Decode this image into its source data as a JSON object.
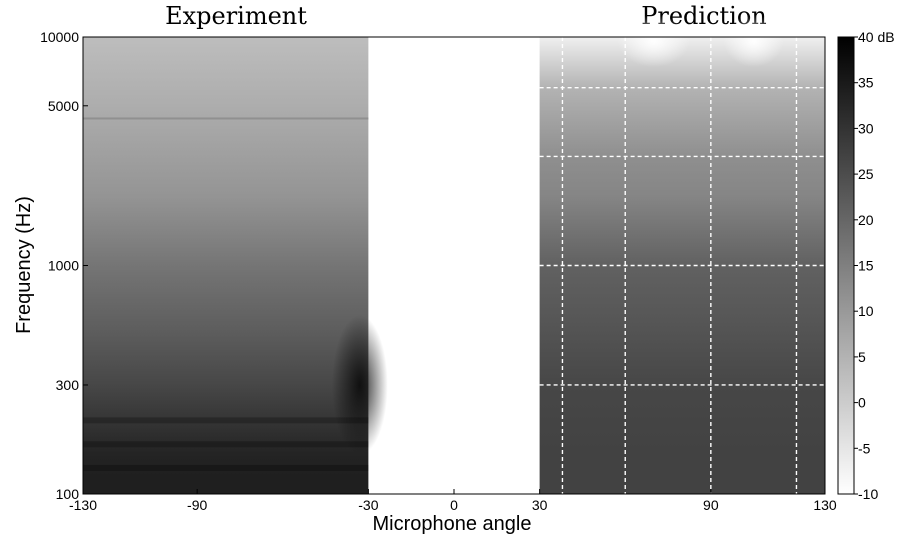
{
  "chart_data": {
    "type": "heatmap",
    "xlabel": "Microphone angle",
    "ylabel": "Frequency (Hz)",
    "x_axis": {
      "range": [
        -130,
        130
      ],
      "ticks": [
        -130,
        -90,
        -30,
        0,
        30,
        90,
        130
      ],
      "tick_labels": [
        "-130",
        "-90",
        "-30",
        "0",
        "30",
        "90",
        "130"
      ]
    },
    "y_axis": {
      "scale": "log",
      "range": [
        100,
        10000
      ],
      "ticks": [
        100,
        300,
        1000,
        5000,
        10000
      ],
      "tick_labels": [
        "100",
        "300",
        "1000",
        "5000",
        "10000"
      ]
    },
    "colorbar": {
      "range": [
        -10,
        40
      ],
      "ticks": [
        -10,
        -5,
        0,
        5,
        10,
        15,
        20,
        25,
        30,
        35,
        40
      ],
      "tick_labels": [
        "-10",
        "-5",
        "0",
        "5",
        "10",
        "15",
        "20",
        "25",
        "30",
        "35",
        "40 dB"
      ],
      "colormap": "white-to-black",
      "unit": "dB"
    },
    "panels": [
      {
        "title": "Experiment",
        "x_range": [
          -130,
          -30
        ],
        "y_range": [
          100,
          10000
        ],
        "level_db_by_frequency": [
          {
            "freq": 120,
            "db": 34
          },
          {
            "freq": 150,
            "db": 33
          },
          {
            "freq": 200,
            "db": 30
          },
          {
            "freq": 300,
            "db": 26
          },
          {
            "freq": 500,
            "db": 22
          },
          {
            "freq": 1000,
            "db": 17
          },
          {
            "freq": 2000,
            "db": 11
          },
          {
            "freq": 5000,
            "db": 6
          },
          {
            "freq": 10000,
            "db": 3
          }
        ],
        "features": [
          {
            "freq": 4400,
            "db": 13
          },
          {
            "freq": 300,
            "x": -33,
            "db": 38
          }
        ]
      },
      {
        "title": "Prediction",
        "x_range": [
          30,
          130
        ],
        "y_range": [
          100,
          10000
        ],
        "level_db_by_frequency": [
          {
            "freq": 150,
            "db": 27
          },
          {
            "freq": 300,
            "db": 26
          },
          {
            "freq": 600,
            "db": 23
          },
          {
            "freq": 1000,
            "db": 21
          },
          {
            "freq": 2000,
            "db": 14
          },
          {
            "freq": 3000,
            "db": 12
          },
          {
            "freq": 6000,
            "db": 5
          },
          {
            "freq": 10000,
            "db": -7
          }
        ],
        "grid": {
          "style": "dashed white",
          "x": [
            38,
            60,
            90,
            120
          ],
          "y": [
            300,
            1000,
            3000,
            6000
          ]
        }
      }
    ]
  }
}
